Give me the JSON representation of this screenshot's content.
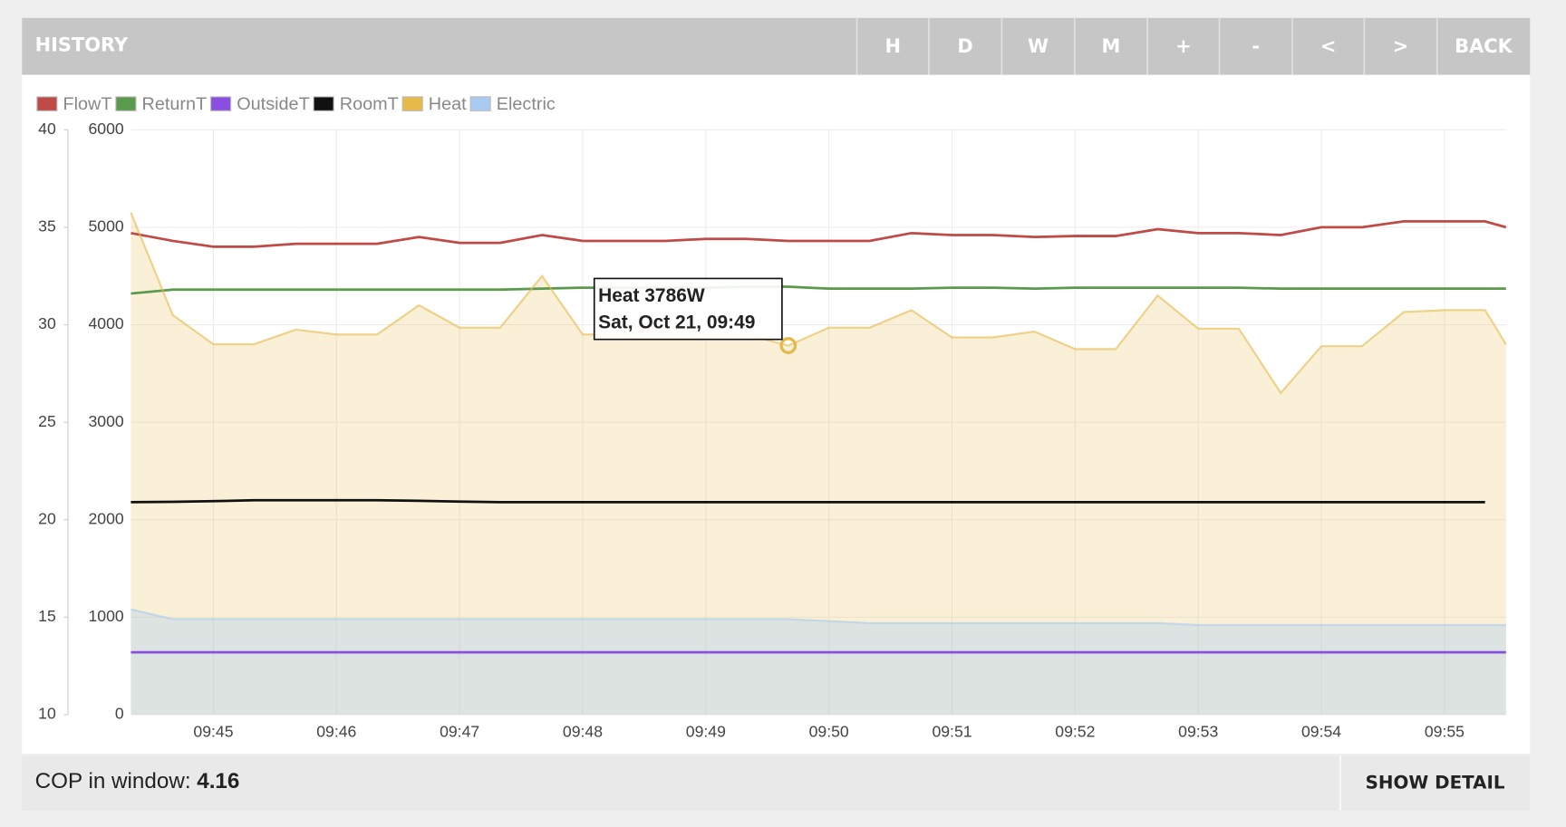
{
  "header": {
    "title": "HISTORY",
    "buttons": [
      "H",
      "D",
      "W",
      "M",
      "+",
      "-",
      "<",
      ">",
      "BACK"
    ]
  },
  "chart_data": {
    "type": "line",
    "x": [
      44.33,
      44.67,
      45,
      45.33,
      45.67,
      46,
      46.33,
      46.67,
      47,
      47.33,
      47.67,
      48,
      48.33,
      48.67,
      49,
      49.33,
      49.67,
      50,
      50.33,
      50.67,
      51,
      51.33,
      51.67,
      52,
      52.33,
      52.67,
      53,
      53.33,
      53.67,
      54,
      54.33,
      54.67,
      55,
      55.33,
      55.5
    ],
    "xlim": [
      44.33,
      55.5
    ],
    "xticks": [
      {
        "value": 45,
        "label": "09:45"
      },
      {
        "value": 46,
        "label": "09:46"
      },
      {
        "value": 47,
        "label": "09:47"
      },
      {
        "value": 48,
        "label": "09:48"
      },
      {
        "value": 49,
        "label": "09:49"
      },
      {
        "value": 50,
        "label": "09:50"
      },
      {
        "value": 51,
        "label": "09:51"
      },
      {
        "value": 52,
        "label": "09:52"
      },
      {
        "value": 53,
        "label": "09:53"
      },
      {
        "value": 54,
        "label": "09:54"
      },
      {
        "value": 55,
        "label": "09:55"
      }
    ],
    "ylim": [
      10,
      40
    ],
    "yticks": [
      10,
      15,
      20,
      25,
      30,
      35,
      40
    ],
    "y2lim": [
      0,
      6000
    ],
    "y2ticks": [
      0,
      1000,
      2000,
      3000,
      4000,
      5000,
      6000
    ],
    "grid": true,
    "series": [
      {
        "name": "FlowT",
        "color": "#bf4b47",
        "values": [
          34.7,
          34.3,
          34.0,
          34.0,
          34.15,
          34.15,
          34.15,
          34.5,
          34.2,
          34.2,
          34.6,
          34.3,
          34.3,
          34.3,
          34.4,
          34.4,
          34.3,
          34.3,
          34.3,
          34.7,
          34.6,
          34.6,
          34.5,
          34.55,
          34.55,
          34.9,
          34.7,
          34.7,
          34.6,
          35.0,
          35.0,
          35.3,
          35.3,
          35.3,
          35.0
        ]
      },
      {
        "name": "ReturnT",
        "color": "#5a9a4c",
        "values": [
          31.6,
          31.8,
          31.8,
          31.8,
          31.8,
          31.8,
          31.8,
          31.8,
          31.8,
          31.8,
          31.85,
          31.9,
          31.9,
          31.9,
          31.9,
          31.95,
          31.95,
          31.85,
          31.85,
          31.85,
          31.9,
          31.9,
          31.85,
          31.9,
          31.9,
          31.9,
          31.9,
          31.9,
          31.85,
          31.85,
          31.85,
          31.85,
          31.85,
          31.85,
          31.85
        ]
      },
      {
        "name": "OutsideT",
        "color": "#8a4fe0",
        "values": [
          13.2,
          13.2,
          13.2,
          13.2,
          13.2,
          13.2,
          13.2,
          13.2,
          13.2,
          13.2,
          13.2,
          13.2,
          13.2,
          13.2,
          13.2,
          13.2,
          13.2,
          13.2,
          13.2,
          13.2,
          13.2,
          13.2,
          13.2,
          13.2,
          13.2,
          13.2,
          13.2,
          13.2,
          13.2,
          13.2,
          13.2,
          13.2,
          13.2,
          13.2,
          13.2
        ]
      },
      {
        "name": "RoomT",
        "color": "#111111",
        "values": [
          20.9,
          20.92,
          20.95,
          21.0,
          21.0,
          21.0,
          21.0,
          20.97,
          20.93,
          20.9,
          20.9,
          20.9,
          20.9,
          20.9,
          20.9,
          20.9,
          20.9,
          20.9,
          20.9,
          20.9,
          20.9,
          20.9,
          20.9,
          20.9,
          20.9,
          20.9,
          20.9,
          20.9,
          20.9,
          20.9,
          20.9,
          20.9,
          20.9,
          20.9,
          null
        ]
      },
      {
        "name": "Heat",
        "color": "#e5b94a",
        "axis": "y2",
        "area": true,
        "values": [
          5150,
          4100,
          3800,
          3800,
          3950,
          3900,
          3900,
          4200,
          3970,
          3970,
          4500,
          3900,
          3900,
          4000,
          3900,
          3900,
          3786,
          3970,
          3970,
          4150,
          3870,
          3870,
          3930,
          3750,
          3750,
          4300,
          3960,
          3960,
          3300,
          3780,
          3780,
          4130,
          4150,
          4150,
          3800
        ]
      },
      {
        "name": "Electric",
        "color": "#a9cbf0",
        "axis": "y2",
        "area": true,
        "values": [
          1080,
          980,
          980,
          980,
          980,
          980,
          980,
          980,
          980,
          980,
          980,
          980,
          980,
          980,
          980,
          980,
          980,
          960,
          940,
          940,
          940,
          940,
          940,
          940,
          940,
          940,
          920,
          920,
          920,
          920,
          920,
          920,
          920,
          920,
          920
        ]
      }
    ],
    "highlight": {
      "series": 4,
      "index": 16
    },
    "tooltip": [
      "Heat 3786W",
      "Sat, Oct 21, 09:49"
    ]
  },
  "footer": {
    "cop_label": "COP in window:",
    "cop_value": 4.16,
    "detail_button": "SHOW DETAIL"
  }
}
